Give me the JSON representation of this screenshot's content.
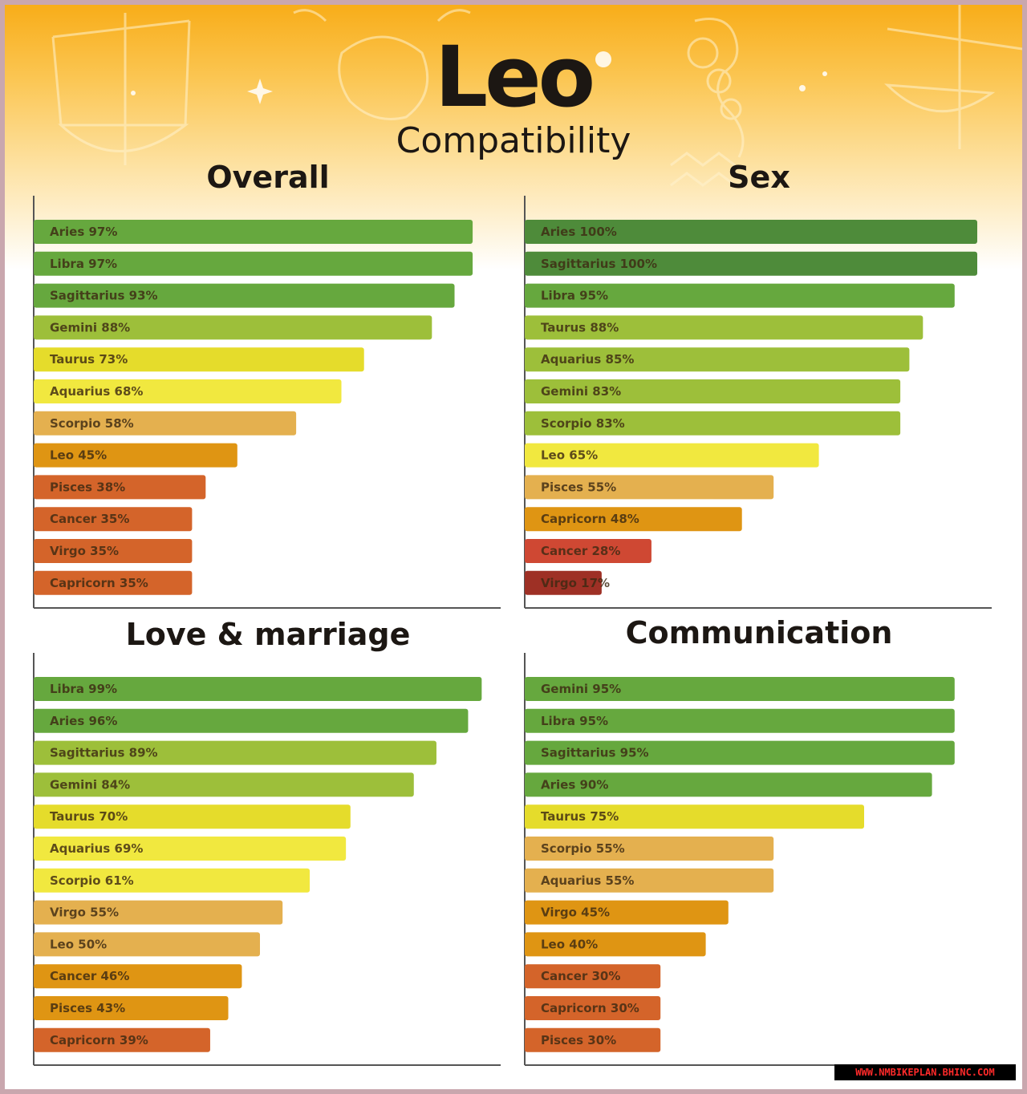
{
  "header": {
    "title": "Leo",
    "subtitle": "Compatibility"
  },
  "colors": {
    "dark_green": "#4e8b3a",
    "green": "#66a83e",
    "light_green": "#9dbf3a",
    "yellow": "#e5dc2b",
    "light_yellow": "#f1e83f",
    "tan": "#e4b04f",
    "orange": "#df9513",
    "orange_red": "#d4642a",
    "red": "#cf4833",
    "dark_red": "#9e3025",
    "axis": "#555555"
  },
  "chart_data": [
    {
      "type": "bar",
      "orientation": "horizontal",
      "title": "Overall",
      "xlim": [
        0,
        100
      ],
      "categories": [
        "Aries",
        "Libra",
        "Sagittarius",
        "Gemini",
        "Taurus",
        "Aquarius",
        "Scorpio",
        "Leo",
        "Pisces",
        "Cancer",
        "Virgo",
        "Capricorn"
      ],
      "values": [
        97,
        97,
        93,
        88,
        73,
        68,
        58,
        45,
        38,
        35,
        35,
        35
      ],
      "labels": [
        "Aries 97%",
        "Libra 97%",
        "Sagittarius 93%",
        "Gemini 88%",
        "Taurus 73%",
        "Aquarius 68%",
        "Scorpio 58%",
        "Leo 45%",
        "Pisces 38%",
        "Cancer 35%",
        "Virgo 35%",
        "Capricorn 35%"
      ],
      "colors": [
        "#66a83e",
        "#66a83e",
        "#66a83e",
        "#9dbf3a",
        "#e5dc2b",
        "#f1e83f",
        "#e4b04f",
        "#df9513",
        "#d4642a",
        "#d4642a",
        "#d4642a",
        "#d4642a"
      ]
    },
    {
      "type": "bar",
      "orientation": "horizontal",
      "title": "Sex",
      "xlim": [
        0,
        100
      ],
      "categories": [
        "Aries",
        "Sagittarius",
        "Libra",
        "Taurus",
        "Aquarius",
        "Gemini",
        "Scorpio",
        "Leo",
        "Pisces",
        "Capricorn",
        "Cancer",
        "Virgo"
      ],
      "values": [
        100,
        100,
        95,
        88,
        85,
        83,
        83,
        65,
        55,
        48,
        28,
        17
      ],
      "labels": [
        "Aries 100%",
        "Sagittarius 100%",
        "Libra 95%",
        "Taurus 88%",
        "Aquarius 85%",
        "Gemini 83%",
        "Scorpio 83%",
        "Leo 65%",
        "Pisces 55%",
        "Capricorn 48%",
        "Cancer 28%",
        "Virgo 17%"
      ],
      "colors": [
        "#4e8b3a",
        "#4e8b3a",
        "#66a83e",
        "#9dbf3a",
        "#9dbf3a",
        "#9dbf3a",
        "#9dbf3a",
        "#f1e83f",
        "#e4b04f",
        "#df9513",
        "#cf4833",
        "#9e3025"
      ]
    },
    {
      "type": "bar",
      "orientation": "horizontal",
      "title": "Love & marriage",
      "xlim": [
        0,
        100
      ],
      "categories": [
        "Libra",
        "Aries",
        "Sagittarius",
        "Gemini",
        "Taurus",
        "Aquarius",
        "Scorpio",
        "Virgo",
        "Leo",
        "Cancer",
        "Pisces",
        "Capricorn"
      ],
      "values": [
        99,
        96,
        89,
        84,
        70,
        69,
        61,
        55,
        50,
        46,
        43,
        39
      ],
      "labels": [
        "Libra 99%",
        "Aries 96%",
        "Sagittarius 89%",
        "Gemini 84%",
        "Taurus 70%",
        "Aquarius 69%",
        "Scorpio 61%",
        "Virgo 55%",
        "Leo 50%",
        "Cancer 46%",
        "Pisces 43%",
        "Capricorn 39%"
      ],
      "colors": [
        "#66a83e",
        "#66a83e",
        "#9dbf3a",
        "#9dbf3a",
        "#e5dc2b",
        "#f1e83f",
        "#f1e83f",
        "#e4b04f",
        "#e4b04f",
        "#df9513",
        "#df9513",
        "#d4642a"
      ]
    },
    {
      "type": "bar",
      "orientation": "horizontal",
      "title": "Communication",
      "xlim": [
        0,
        100
      ],
      "categories": [
        "Gemini",
        "Libra",
        "Sagittarius",
        "Aries",
        "Taurus",
        "Scorpio",
        "Aquarius",
        "Virgo",
        "Leo",
        "Cancer",
        "Capricorn",
        "Pisces"
      ],
      "values": [
        95,
        95,
        95,
        90,
        75,
        55,
        55,
        45,
        40,
        30,
        30,
        30
      ],
      "labels": [
        "Gemini 95%",
        "Libra 95%",
        "Sagittarius 95%",
        "Aries 90%",
        "Taurus 75%",
        "Scorpio 55%",
        "Aquarius 55%",
        "Virgo 45%",
        "Leo 40%",
        "Cancer 30%",
        "Capricorn 30%",
        "Pisces 30%"
      ],
      "colors": [
        "#66a83e",
        "#66a83e",
        "#66a83e",
        "#66a83e",
        "#e5dc2b",
        "#e4b04f",
        "#e4b04f",
        "#df9513",
        "#df9513",
        "#d4642a",
        "#d4642a",
        "#d4642a"
      ]
    }
  ],
  "watermark": "WWW.NMBIKEPLAN.BHINC.COM"
}
